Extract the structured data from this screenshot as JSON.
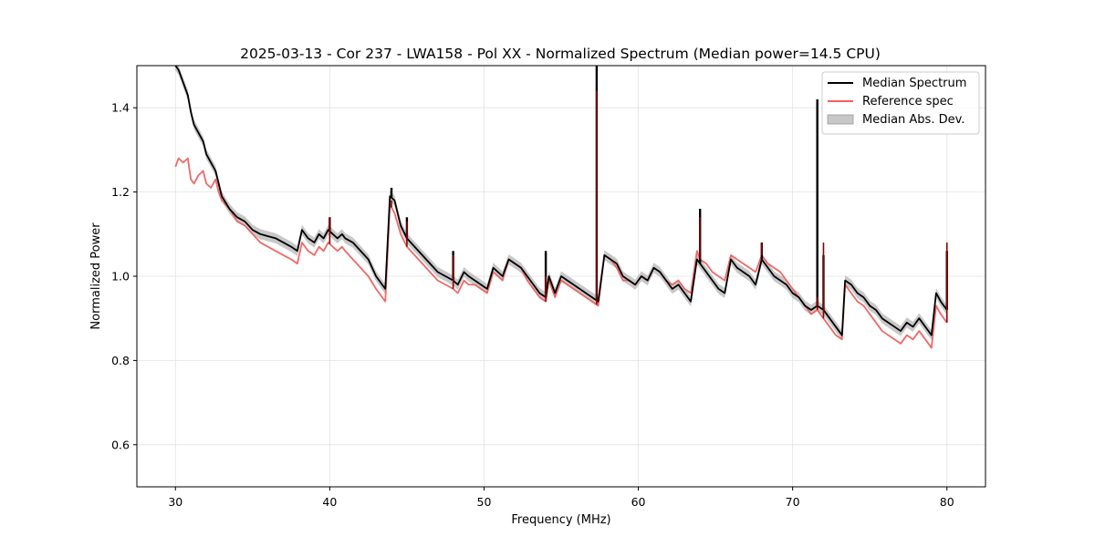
{
  "chart_data": {
    "type": "line",
    "title": "2025-03-13 - Cor 237 - LWA158 - Pol XX - Normalized Spectrum (Median power=14.5 CPU)",
    "xlabel": "Frequency (MHz)",
    "ylabel": "Normalized Power",
    "xlim": [
      27.5,
      82.5
    ],
    "ylim": [
      0.5,
      1.5
    ],
    "xticks": [
      30,
      40,
      50,
      60,
      70,
      80
    ],
    "yticks": [
      0.6,
      0.8,
      1.0,
      1.2,
      1.4
    ],
    "xtick_labels": [
      "30",
      "40",
      "50",
      "60",
      "70",
      "80"
    ],
    "ytick_labels": [
      "0.6",
      "0.8",
      "1.0",
      "1.2",
      "1.4"
    ],
    "grid": true,
    "legend_position": "top-right",
    "legend": [
      {
        "label": "Median Spectrum",
        "kind": "line",
        "color": "#000000"
      },
      {
        "label": "Reference spec",
        "kind": "line",
        "color": "#f06060"
      },
      {
        "label": "Median Abs. Dev.",
        "kind": "band",
        "color": "#b0b0b0"
      }
    ],
    "series": [
      {
        "name": "Median Spectrum",
        "color": "#000000",
        "x": [
          30.0,
          30.2,
          30.5,
          30.8,
          31.0,
          31.2,
          31.5,
          31.8,
          32.0,
          32.3,
          32.6,
          32.8,
          33.0,
          33.5,
          34.0,
          34.5,
          35.0,
          35.5,
          36.0,
          36.5,
          37.0,
          37.5,
          37.9,
          38.2,
          38.6,
          39.0,
          39.3,
          39.6,
          39.9,
          40.2,
          40.5,
          40.8,
          41.0,
          41.5,
          42.0,
          42.5,
          43.0,
          43.6,
          43.9,
          44.2,
          44.6,
          45.0,
          45.5,
          46.0,
          46.5,
          47.0,
          47.5,
          48.0,
          48.3,
          48.7,
          49.0,
          49.4,
          49.8,
          50.2,
          50.6,
          50.9,
          51.2,
          51.6,
          52.0,
          52.4,
          52.8,
          53.2,
          53.6,
          54.0,
          54.2,
          54.6,
          55.0,
          55.4,
          55.8,
          56.2,
          56.6,
          57.0,
          57.4,
          57.8,
          58.2,
          58.6,
          59.0,
          59.4,
          59.8,
          60.2,
          60.6,
          61.0,
          61.4,
          61.8,
          62.2,
          62.6,
          63.0,
          63.4,
          63.8,
          64.0,
          64.4,
          64.8,
          65.2,
          65.6,
          66.0,
          66.4,
          66.8,
          67.2,
          67.6,
          68.0,
          68.4,
          68.8,
          69.2,
          69.6,
          70.0,
          70.4,
          70.8,
          71.2,
          71.6,
          72.0,
          72.4,
          72.8,
          73.2,
          73.4,
          73.8,
          74.2,
          74.6,
          75.0,
          75.4,
          75.8,
          76.2,
          76.6,
          77.0,
          77.4,
          77.8,
          78.2,
          78.6,
          79.0,
          79.3,
          79.6,
          80.0
        ],
        "values": [
          1.5,
          1.49,
          1.46,
          1.43,
          1.39,
          1.36,
          1.34,
          1.32,
          1.29,
          1.27,
          1.25,
          1.22,
          1.19,
          1.16,
          1.14,
          1.13,
          1.11,
          1.1,
          1.095,
          1.09,
          1.08,
          1.07,
          1.06,
          1.11,
          1.09,
          1.08,
          1.1,
          1.09,
          1.11,
          1.1,
          1.09,
          1.1,
          1.09,
          1.08,
          1.06,
          1.04,
          1.0,
          0.97,
          1.19,
          1.18,
          1.12,
          1.09,
          1.07,
          1.05,
          1.03,
          1.01,
          1.0,
          0.99,
          0.98,
          1.01,
          1.0,
          0.99,
          0.98,
          0.97,
          1.02,
          1.01,
          1.0,
          1.04,
          1.03,
          1.02,
          1.0,
          0.98,
          0.96,
          0.95,
          1.0,
          0.96,
          1.0,
          0.99,
          0.98,
          0.97,
          0.96,
          0.95,
          0.94,
          1.05,
          1.04,
          1.03,
          1.0,
          0.99,
          0.98,
          1.0,
          0.99,
          1.02,
          1.01,
          0.99,
          0.97,
          0.98,
          0.96,
          0.94,
          1.04,
          1.03,
          1.01,
          0.99,
          0.97,
          0.96,
          1.04,
          1.02,
          1.01,
          1.0,
          0.98,
          1.04,
          1.02,
          1.0,
          0.99,
          0.98,
          0.96,
          0.95,
          0.93,
          0.92,
          0.93,
          0.92,
          0.9,
          0.88,
          0.86,
          0.99,
          0.98,
          0.96,
          0.95,
          0.93,
          0.92,
          0.9,
          0.89,
          0.88,
          0.87,
          0.89,
          0.88,
          0.9,
          0.88,
          0.86,
          0.96,
          0.94,
          0.92
        ]
      },
      {
        "name": "Reference spec",
        "color": "#f06060",
        "x": [
          30.0,
          30.2,
          30.5,
          30.8,
          31.0,
          31.2,
          31.5,
          31.8,
          32.0,
          32.3,
          32.6,
          32.8,
          33.0,
          33.5,
          34.0,
          34.5,
          35.0,
          35.5,
          36.0,
          36.5,
          37.0,
          37.5,
          37.9,
          38.2,
          38.6,
          39.0,
          39.3,
          39.6,
          39.9,
          40.2,
          40.5,
          40.8,
          41.0,
          41.5,
          42.0,
          42.5,
          43.0,
          43.6,
          43.9,
          44.2,
          44.6,
          45.0,
          45.5,
          46.0,
          46.5,
          47.0,
          47.5,
          48.0,
          48.3,
          48.7,
          49.0,
          49.4,
          49.8,
          50.2,
          50.6,
          50.9,
          51.2,
          51.6,
          52.0,
          52.4,
          52.8,
          53.2,
          53.6,
          54.0,
          54.2,
          54.6,
          55.0,
          55.4,
          55.8,
          56.2,
          56.6,
          57.0,
          57.4,
          57.8,
          58.2,
          58.6,
          59.0,
          59.4,
          59.8,
          60.2,
          60.6,
          61.0,
          61.4,
          61.8,
          62.2,
          62.6,
          63.0,
          63.4,
          63.8,
          64.0,
          64.4,
          64.8,
          65.2,
          65.6,
          66.0,
          66.4,
          66.8,
          67.2,
          67.6,
          68.0,
          68.4,
          68.8,
          69.2,
          69.6,
          70.0,
          70.4,
          70.8,
          71.2,
          71.6,
          72.0,
          72.4,
          72.8,
          73.2,
          73.4,
          73.8,
          74.2,
          74.6,
          75.0,
          75.4,
          75.8,
          76.2,
          76.6,
          77.0,
          77.4,
          77.8,
          78.2,
          78.6,
          79.0,
          79.3,
          79.6,
          80.0
        ],
        "values": [
          1.26,
          1.28,
          1.27,
          1.28,
          1.23,
          1.22,
          1.24,
          1.25,
          1.22,
          1.21,
          1.23,
          1.2,
          1.18,
          1.16,
          1.13,
          1.12,
          1.1,
          1.08,
          1.07,
          1.06,
          1.05,
          1.04,
          1.03,
          1.08,
          1.06,
          1.05,
          1.07,
          1.06,
          1.08,
          1.07,
          1.06,
          1.07,
          1.06,
          1.04,
          1.02,
          1.0,
          0.97,
          0.94,
          1.17,
          1.15,
          1.1,
          1.07,
          1.05,
          1.03,
          1.01,
          0.99,
          0.98,
          0.97,
          0.96,
          0.99,
          0.98,
          0.98,
          0.97,
          0.96,
          1.01,
          1.0,
          0.99,
          1.04,
          1.03,
          1.02,
          0.99,
          0.97,
          0.95,
          0.94,
          0.99,
          0.95,
          0.99,
          0.98,
          0.97,
          0.96,
          0.95,
          0.94,
          0.93,
          1.05,
          1.04,
          1.02,
          0.99,
          0.99,
          0.98,
          1.0,
          0.99,
          1.02,
          1.01,
          0.99,
          0.98,
          0.99,
          0.97,
          0.96,
          1.06,
          1.04,
          1.03,
          1.01,
          1.0,
          0.99,
          1.05,
          1.04,
          1.03,
          1.02,
          1.01,
          1.05,
          1.03,
          1.02,
          1.01,
          0.99,
          0.97,
          0.95,
          0.93,
          0.91,
          0.92,
          0.9,
          0.88,
          0.86,
          0.85,
          0.98,
          0.96,
          0.94,
          0.93,
          0.91,
          0.89,
          0.87,
          0.86,
          0.85,
          0.84,
          0.86,
          0.85,
          0.87,
          0.85,
          0.83,
          0.93,
          0.91,
          0.89
        ]
      }
    ],
    "spikes": [
      {
        "x": 40.0,
        "median": 1.14,
        "reference": 1.14
      },
      {
        "x": 44.0,
        "median": 1.21,
        "reference": 1.18
      },
      {
        "x": 45.0,
        "median": 1.14,
        "reference": 1.13
      },
      {
        "x": 48.0,
        "median": 1.06,
        "reference": 1.05
      },
      {
        "x": 54.0,
        "median": 1.06,
        "reference": 1.0
      },
      {
        "x": 57.3,
        "median": 1.5,
        "reference": 1.44
      },
      {
        "x": 64.0,
        "median": 1.16,
        "reference": 1.14
      },
      {
        "x": 68.0,
        "median": 1.08,
        "reference": 1.08
      },
      {
        "x": 71.6,
        "median": 1.42,
        "reference": 0.95
      },
      {
        "x": 72.0,
        "median": 1.05,
        "reference": 1.08
      },
      {
        "x": 80.0,
        "median": 1.06,
        "reference": 1.08
      }
    ],
    "mad_band_width": 0.012
  }
}
